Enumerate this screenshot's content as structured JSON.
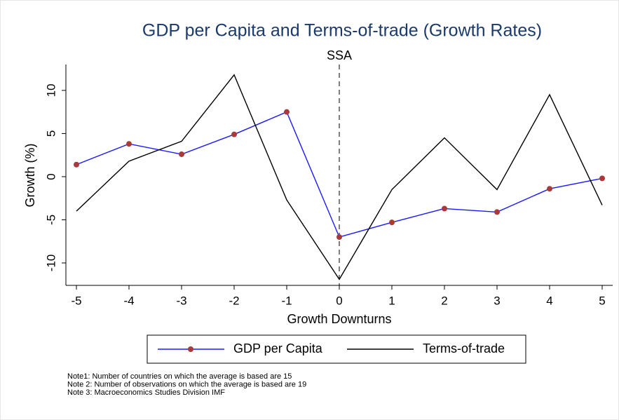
{
  "chart_data": {
    "type": "line",
    "title": "GDP per Capita and Terms-of-trade (Growth Rates)",
    "annotation": "SSA",
    "vline": 0,
    "xlabel": "Growth Downturns",
    "ylabel": "Growth (%)",
    "x": [
      -5,
      -4,
      -3,
      -2,
      -1,
      0,
      1,
      2,
      3,
      4,
      5
    ],
    "series": [
      {
        "name": "GDP per Capita",
        "color": "#1a1aff",
        "marker_color": "#a83a3a",
        "marker": true,
        "values": [
          1.4,
          3.8,
          2.6,
          4.9,
          7.5,
          -7.0,
          -5.3,
          -3.7,
          -4.1,
          -1.4,
          -0.2
        ]
      },
      {
        "name": "Terms-of-trade",
        "color": "#000000",
        "marker": false,
        "values": [
          -4.0,
          1.8,
          4.1,
          11.8,
          -2.7,
          -11.9,
          -1.5,
          4.5,
          -1.5,
          9.5,
          -3.3
        ]
      }
    ],
    "xlim": [
      -5.2,
      5.2
    ],
    "ylim": [
      -12.6,
      13.0
    ],
    "xticks": [
      -5,
      -4,
      -3,
      -2,
      -1,
      0,
      1,
      2,
      3,
      4,
      5
    ],
    "yticks": [
      -10,
      -5,
      0,
      5,
      10
    ],
    "grid": false,
    "legend": "bottom",
    "notes": [
      "Note1: Number of countries on which the average is based are 15",
      "Note 2: Number of observations on which the average is based are 19",
      "Note 3: Macroeconomics Studies Division IMF"
    ]
  }
}
